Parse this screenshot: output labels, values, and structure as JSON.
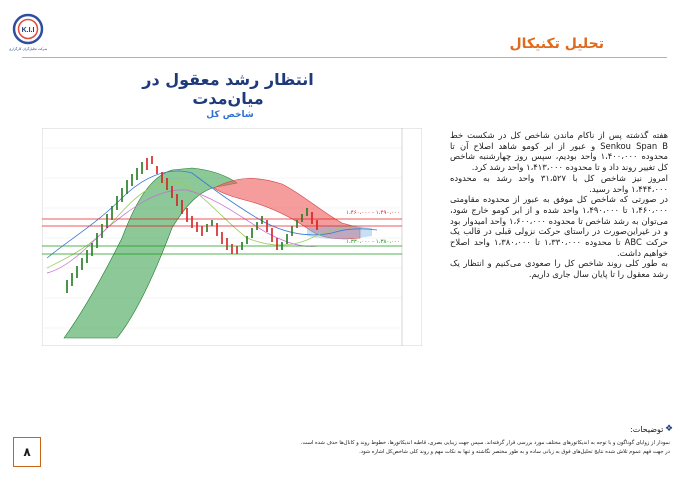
{
  "header": {
    "section_title": "تحلیل تکنیکال",
    "logo_text": "K.I.I",
    "logo_caption": "شرکت تحلیل‌گران کارگزاری"
  },
  "main": {
    "title": "انتظار رشد معقول در میان‌مدت",
    "chart_title": "شاخص کل"
  },
  "chart_data": {
    "type": "line",
    "title": "شاخص کل",
    "indicator": "Ichimoku cloud",
    "price_levels": [
      {
        "label": "۱،۴۶۰،۰۰۰ - ۱،۴۹۰،۰۰۰",
        "color": "#e02020"
      },
      {
        "label": "۱،۳۳۰،۰۰۰ - ۱،۳۸۰،۰۰۰",
        "color": "#1a9a1a"
      }
    ],
    "colors": {
      "bull_cloud": "#2e9a44",
      "bear_cloud": "#ef5a5a",
      "up_candle": "#1f7a1f",
      "down_candle": "#d32020"
    }
  },
  "analysis": {
    "paragraphs": [
      "هفته گذشته پس از ناکام ماندن شاخص کل در شکست خط Senkou Span B و عبور از ابر کومو شاهد اصلاح آن تا محدوده ۱،۴۰۰،۰۰۰ واحد بودیم، سپس روز چهارشنبه شاخص کل تغییر روند داد و تا محدوده ۱،۴۱۳،۰۰۰ واحد رشد کرد.",
      "امروز نیز شاخص کل با ۳۱،۵۲۷ واحد رشد به محدوده ۱،۴۴۴،۰۰۰ واحد رسید.",
      "در صورتی که شاخص کل موفق به عبور از محدوده مقاومتی ۱،۴۶۰،۰۰۰ تا ۱،۴۹۰،۰۰۰ واحد شده و از ابر کومو خارج شود، می‌توان به رشد شاخص تا محدوده ۱،۶۰۰،۰۰۰ واحد امیدوار بود و در غیراین‌صورت در راستای حرکت نزولی قبلی در قالب یک حرکت ABC تا محدوده ۱،۳۳۰،۰۰۰ تا ۱،۳۸۰،۰۰۰ واحد اصلاح خواهیم داشت.",
      "به طور کلی روند شاخص کل را صعودی می‌کنیم و انتظار یک رشد معقول را تا پایان سال جاری داریم."
    ]
  },
  "notes": {
    "heading": "توضیحات:",
    "items": [
      "نمودار از زوایای گوناگون و با توجه به اندیکاتورهای مختلف مورد بررسی قرار گرفته‌اند. سپس جهت زیبایی بصری، قاطبه اندیکاتورها، خطوط روند و کانال‌ها حذف شده است.",
      "در جهت فهم عموم تلاش شده نتایج تحلیل‌های فوق به زبانی ساده و به طور مختصر نگاشته و تنها به نکات مهم و روند کلی شاخص‌کل اشاره شود."
    ]
  },
  "footer": {
    "page_number": "۸"
  }
}
